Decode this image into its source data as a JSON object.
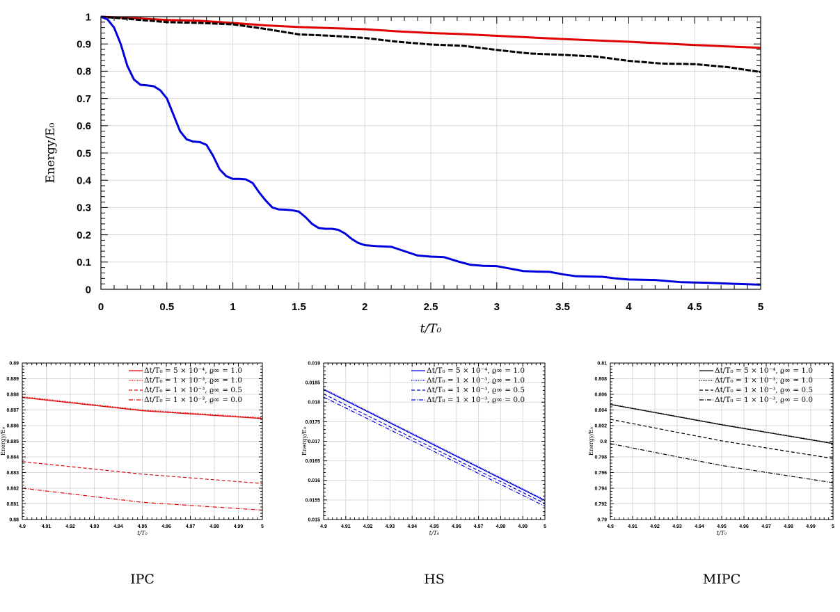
{
  "chart_data": [
    {
      "type": "line",
      "xlabel": "t/T₀",
      "ylabel": "Energy/E₀",
      "xlim": [
        0,
        5
      ],
      "ylim": [
        0,
        1
      ],
      "xticks": [
        "0",
        "0.5",
        "1",
        "1.5",
        "2",
        "2.5",
        "3",
        "3.5",
        "4",
        "4.5",
        "5"
      ],
      "yticks": [
        "0",
        "0.1",
        "0.2",
        "0.3",
        "0.4",
        "0.5",
        "0.6",
        "0.7",
        "0.8",
        "0.9",
        "1"
      ],
      "grid": true,
      "series": [
        {
          "color": "#e00000",
          "x": [
            0,
            0.25,
            0.5,
            0.75,
            1.0,
            1.25,
            1.5,
            1.75,
            2.0,
            2.25,
            2.5,
            2.75,
            3.0,
            3.25,
            3.5,
            3.75,
            4.0,
            4.25,
            4.5,
            4.75,
            5.0
          ],
          "y": [
            1.0,
            0.995,
            0.988,
            0.985,
            0.977,
            0.968,
            0.962,
            0.958,
            0.954,
            0.946,
            0.94,
            0.936,
            0.93,
            0.924,
            0.918,
            0.913,
            0.908,
            0.902,
            0.896,
            0.891,
            0.886
          ]
        },
        {
          "color": "#000000",
          "x": [
            0,
            0.25,
            0.5,
            0.75,
            1.0,
            1.25,
            1.5,
            1.75,
            2.0,
            2.25,
            2.5,
            2.75,
            3.0,
            3.25,
            3.5,
            3.75,
            4.0,
            4.25,
            4.5,
            4.75,
            5.0
          ],
          "y": [
            1.0,
            0.99,
            0.98,
            0.977,
            0.972,
            0.955,
            0.935,
            0.93,
            0.922,
            0.908,
            0.898,
            0.893,
            0.878,
            0.865,
            0.86,
            0.854,
            0.838,
            0.828,
            0.826,
            0.815,
            0.797
          ]
        },
        {
          "color": "#0000dd",
          "x": [
            0,
            0.05,
            0.1,
            0.15,
            0.2,
            0.25,
            0.3,
            0.35,
            0.4,
            0.45,
            0.5,
            0.55,
            0.6,
            0.65,
            0.7,
            0.75,
            0.8,
            0.85,
            0.9,
            0.95,
            1.0,
            1.05,
            1.1,
            1.15,
            1.2,
            1.25,
            1.3,
            1.35,
            1.4,
            1.45,
            1.5,
            1.55,
            1.6,
            1.65,
            1.7,
            1.75,
            1.8,
            1.85,
            1.9,
            1.95,
            2.0,
            2.1,
            2.2,
            2.3,
            2.4,
            2.5,
            2.6,
            2.7,
            2.8,
            2.9,
            3.0,
            3.1,
            3.2,
            3.3,
            3.4,
            3.5,
            3.6,
            3.7,
            3.8,
            3.9,
            4.0,
            4.2,
            4.4,
            4.6,
            4.8,
            5.0
          ],
          "y": [
            1.0,
            0.99,
            0.96,
            0.9,
            0.82,
            0.77,
            0.75,
            0.748,
            0.745,
            0.73,
            0.7,
            0.64,
            0.58,
            0.55,
            0.542,
            0.54,
            0.53,
            0.49,
            0.44,
            0.415,
            0.405,
            0.405,
            0.403,
            0.39,
            0.355,
            0.325,
            0.3,
            0.293,
            0.292,
            0.29,
            0.285,
            0.265,
            0.24,
            0.225,
            0.222,
            0.222,
            0.218,
            0.205,
            0.185,
            0.17,
            0.162,
            0.158,
            0.156,
            0.14,
            0.124,
            0.12,
            0.118,
            0.103,
            0.09,
            0.086,
            0.085,
            0.076,
            0.067,
            0.065,
            0.064,
            0.055,
            0.048,
            0.047,
            0.046,
            0.04,
            0.036,
            0.034,
            0.026,
            0.024,
            0.02,
            0.017
          ]
        }
      ]
    },
    {
      "type": "line",
      "caption": "IPC",
      "xlabel": "t/T₀",
      "ylabel": "Energy/E₀",
      "xlim": [
        4.9,
        5.0
      ],
      "ylim": [
        0.88,
        0.89
      ],
      "xticks": [
        "4.9",
        "4.91",
        "4.92",
        "4.93",
        "4.94",
        "4.95",
        "4.96",
        "4.97",
        "4.98",
        "4.99",
        "5"
      ],
      "yticks": [
        "0.88",
        "0.881",
        "0.882",
        "0.883",
        "0.884",
        "0.885",
        "0.886",
        "0.887",
        "0.888",
        "0.889",
        "0.89"
      ],
      "grid": true,
      "legend_position": "top-right",
      "series": [
        {
          "name": "Δt/T₀ = 5 × 10⁻⁴, ϱ∞ = 1.0",
          "color": "#e00000",
          "dash": "solid",
          "x": [
            4.9,
            4.95,
            5.0
          ],
          "y": [
            0.8878,
            0.88695,
            0.88645
          ]
        },
        {
          "name": "Δt/T₀ = 1 × 10⁻³, ϱ∞ = 1.0",
          "color": "#e00000",
          "dash": "dotted",
          "x": [
            4.9,
            4.95,
            5.0
          ],
          "y": [
            0.88785,
            0.887,
            0.8865
          ]
        },
        {
          "name": "Δt/T₀ = 1 × 10⁻³, ϱ∞ = 0.5",
          "color": "#e00000",
          "dash": "dashed",
          "x": [
            4.9,
            4.95,
            5.0
          ],
          "y": [
            0.8837,
            0.8829,
            0.8823
          ]
        },
        {
          "name": "Δt/T₀ = 1 × 10⁻³, ϱ∞ = 0.0",
          "color": "#e00000",
          "dash": "dashdot",
          "x": [
            4.9,
            4.95,
            5.0
          ],
          "y": [
            0.882,
            0.8811,
            0.8806
          ]
        }
      ]
    },
    {
      "type": "line",
      "caption": "HS",
      "xlabel": "t/T₀",
      "ylabel": "Energy/E₀",
      "xlim": [
        4.9,
        5.0
      ],
      "ylim": [
        0.015,
        0.019
      ],
      "xticks": [
        "4.9",
        "4.91",
        "4.92",
        "4.93",
        "4.94",
        "4.95",
        "4.96",
        "4.97",
        "4.98",
        "4.99",
        "5"
      ],
      "yticks": [
        "0.015",
        "0.0155",
        "0.016",
        "0.0165",
        "0.017",
        "0.0175",
        "0.018",
        "0.0185",
        "0.019"
      ],
      "grid": true,
      "legend_position": "top-right",
      "series": [
        {
          "name": "Δt/T₀ = 5 × 10⁻⁴, ϱ∞ = 1.0",
          "color": "#0000dd",
          "dash": "solid",
          "x": [
            4.9,
            5.0
          ],
          "y": [
            0.01832,
            0.01548
          ]
        },
        {
          "name": "Δt/T₀ = 1 × 10⁻³, ϱ∞ = 1.0",
          "color": "#0000dd",
          "dash": "dotted",
          "x": [
            4.9,
            5.0
          ],
          "y": [
            0.01834,
            0.0155
          ]
        },
        {
          "name": "Δt/T₀ = 1 × 10⁻³, ϱ∞ = 0.5",
          "color": "#0000dd",
          "dash": "dashed",
          "x": [
            4.9,
            5.0
          ],
          "y": [
            0.01821,
            0.01541
          ]
        },
        {
          "name": "Δt/T₀ = 1 × 10⁻³, ϱ∞ = 0.0",
          "color": "#0000dd",
          "dash": "dashdot",
          "x": [
            4.9,
            5.0
          ],
          "y": [
            0.01813,
            0.01534
          ]
        }
      ]
    },
    {
      "type": "line",
      "caption": "MIPC",
      "xlabel": "t/T₀",
      "ylabel": "Energy/E₀",
      "xlim": [
        4.9,
        5.0
      ],
      "ylim": [
        0.79,
        0.81
      ],
      "xticks": [
        "4.9",
        "4.91",
        "4.92",
        "4.93",
        "4.94",
        "4.95",
        "4.96",
        "4.97",
        "4.98",
        "4.99",
        "5"
      ],
      "yticks": [
        "0.79",
        "0.792",
        "0.794",
        "0.796",
        "0.798",
        "0.8",
        "0.802",
        "0.804",
        "0.806",
        "0.808",
        "0.81"
      ],
      "grid": true,
      "legend_position": "top-right",
      "series": [
        {
          "name": "Δt/T₀ = 5 × 10⁻⁴, ϱ∞ = 1.0",
          "color": "#000000",
          "dash": "solid",
          "x": [
            4.9,
            4.95,
            5.0
          ],
          "y": [
            0.8047,
            0.8021,
            0.7997
          ]
        },
        {
          "name": "Δt/T₀ = 1 × 10⁻³, ϱ∞ = 1.0",
          "color": "#000000",
          "dash": "dotted",
          "x": [
            4.9,
            4.95,
            5.0
          ],
          "y": [
            0.80475,
            0.80215,
            0.79975
          ]
        },
        {
          "name": "Δt/T₀ = 1 × 10⁻³, ϱ∞ = 0.5",
          "color": "#000000",
          "dash": "dashed",
          "x": [
            4.9,
            4.95,
            5.0
          ],
          "y": [
            0.8028,
            0.80005,
            0.7978
          ]
        },
        {
          "name": "Δt/T₀ = 1 × 10⁻³, ϱ∞ = 0.0",
          "color": "#000000",
          "dash": "dashdot",
          "x": [
            4.9,
            4.95,
            5.0
          ],
          "y": [
            0.7997,
            0.7969,
            0.7947
          ]
        }
      ]
    }
  ]
}
